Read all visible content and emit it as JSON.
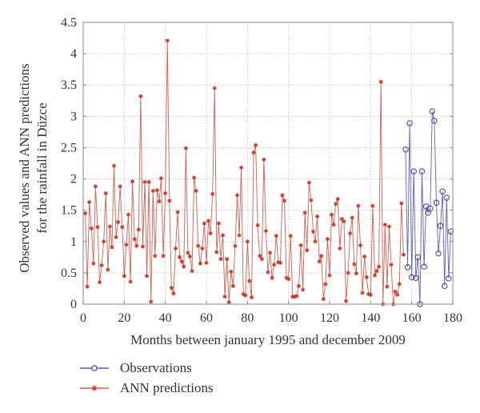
{
  "chart_data": {
    "type": "line",
    "title": "",
    "xlabel": "Months between january 1995 and december 2009",
    "ylabel_line1": "Observed values and ANN predictions",
    "ylabel_line2": "for the rainfall in Düzce",
    "xlim": [
      0,
      180
    ],
    "ylim": [
      0,
      4.5
    ],
    "xticks": [
      0,
      20,
      40,
      60,
      80,
      100,
      120,
      140,
      160,
      180
    ],
    "yticks": [
      0,
      0.5,
      1,
      1.5,
      2,
      2.5,
      3,
      3.5,
      4,
      4.5
    ],
    "xtick_labels": [
      "0",
      "20",
      "40",
      "60",
      "80",
      "100",
      "120",
      "140",
      "160",
      "180"
    ],
    "ytick_labels": [
      "0",
      "0.5",
      "1",
      "1.5",
      "2",
      "2.5",
      "3",
      "3.5",
      "4",
      "4.5"
    ],
    "grid": true,
    "legend_position": "below-left",
    "series": [
      {
        "name": "Observations",
        "color": "#3b3b9a",
        "marker": "circle",
        "x_start": 157,
        "values": [
          2.47,
          0.59,
          2.89,
          0.43,
          2.12,
          0.42,
          0.75,
          0.0,
          2.12,
          0.6,
          1.56,
          1.46,
          1.53,
          3.08,
          2.93,
          1.62,
          0.81,
          1.25,
          1.8,
          0.29,
          1.7,
          0.41,
          1.16
        ]
      },
      {
        "name": "ANN predictions",
        "color": "#c0392b",
        "marker": "star",
        "x_start": 1,
        "values": [
          1.45,
          0.28,
          1.63,
          1.21,
          0.65,
          1.88,
          1.23,
          0.35,
          0.62,
          1.0,
          1.77,
          0.55,
          1.24,
          0.91,
          2.21,
          1.07,
          1.31,
          1.88,
          1.23,
          0.45,
          0.95,
          1.43,
          0.36,
          1.96,
          1.04,
          0.93,
          1.19,
          3.32,
          0.92,
          1.95,
          0.45,
          1.95,
          0.04,
          1.81,
          0.77,
          1.82,
          1.64,
          2.01,
          0.77,
          1.77,
          4.21,
          1.65,
          0.26,
          0.17,
          0.89,
          1.47,
          0.75,
          0.68,
          0.6,
          2.49,
          0.82,
          0.76,
          0.53,
          2.02,
          1.81,
          0.93,
          0.65,
          0.89,
          1.29,
          0.66,
          1.33,
          1.13,
          1.76,
          3.45,
          0.83,
          1.29,
          0.72,
          1.1,
          0.12,
          0.72,
          0.03,
          0.52,
          0.29,
          0.93,
          1.74,
          1.1,
          2.18,
          0.16,
          0.14,
          1.0,
          0.37,
          0.11,
          2.42,
          2.54,
          1.26,
          0.77,
          0.72,
          2.31,
          1.17,
          0.51,
          0.82,
          0.42,
          0.63,
          1.09,
          0.67,
          0.66,
          1.74,
          1.65,
          0.42,
          0.4,
          1.09,
          0.12,
          0.12,
          0.13,
          0.29,
          0.94,
          0.23,
          1.46,
          0.86,
          1.94,
          1.66,
          1.16,
          1.0,
          1.4,
          0.68,
          0.77,
          0.08,
          0.32,
          1.04,
          0.46,
          1.43,
          1.27,
          1.6,
          1.68,
          0.89,
          1.36,
          1.32,
          0.05,
          0.5,
          1.13,
          1.38,
          0.64,
          0.49,
          1.57,
          0.94,
          0.18,
          0.76,
          0.43,
          0.16,
          0.15,
          1.57,
          0.46,
          0.53,
          0.6,
          3.55,
          0.0,
          1.27,
          0.28,
          1.24,
          0.63,
          0.0,
          0.2,
          0.15,
          0.32,
          1.61,
          0.79
        ]
      }
    ]
  },
  "legend": {
    "items": [
      {
        "label": "Observations",
        "color": "#3b3b9a",
        "marker": "circle"
      },
      {
        "label": "ANN predictions",
        "color": "#c0392b",
        "marker": "star"
      }
    ]
  }
}
